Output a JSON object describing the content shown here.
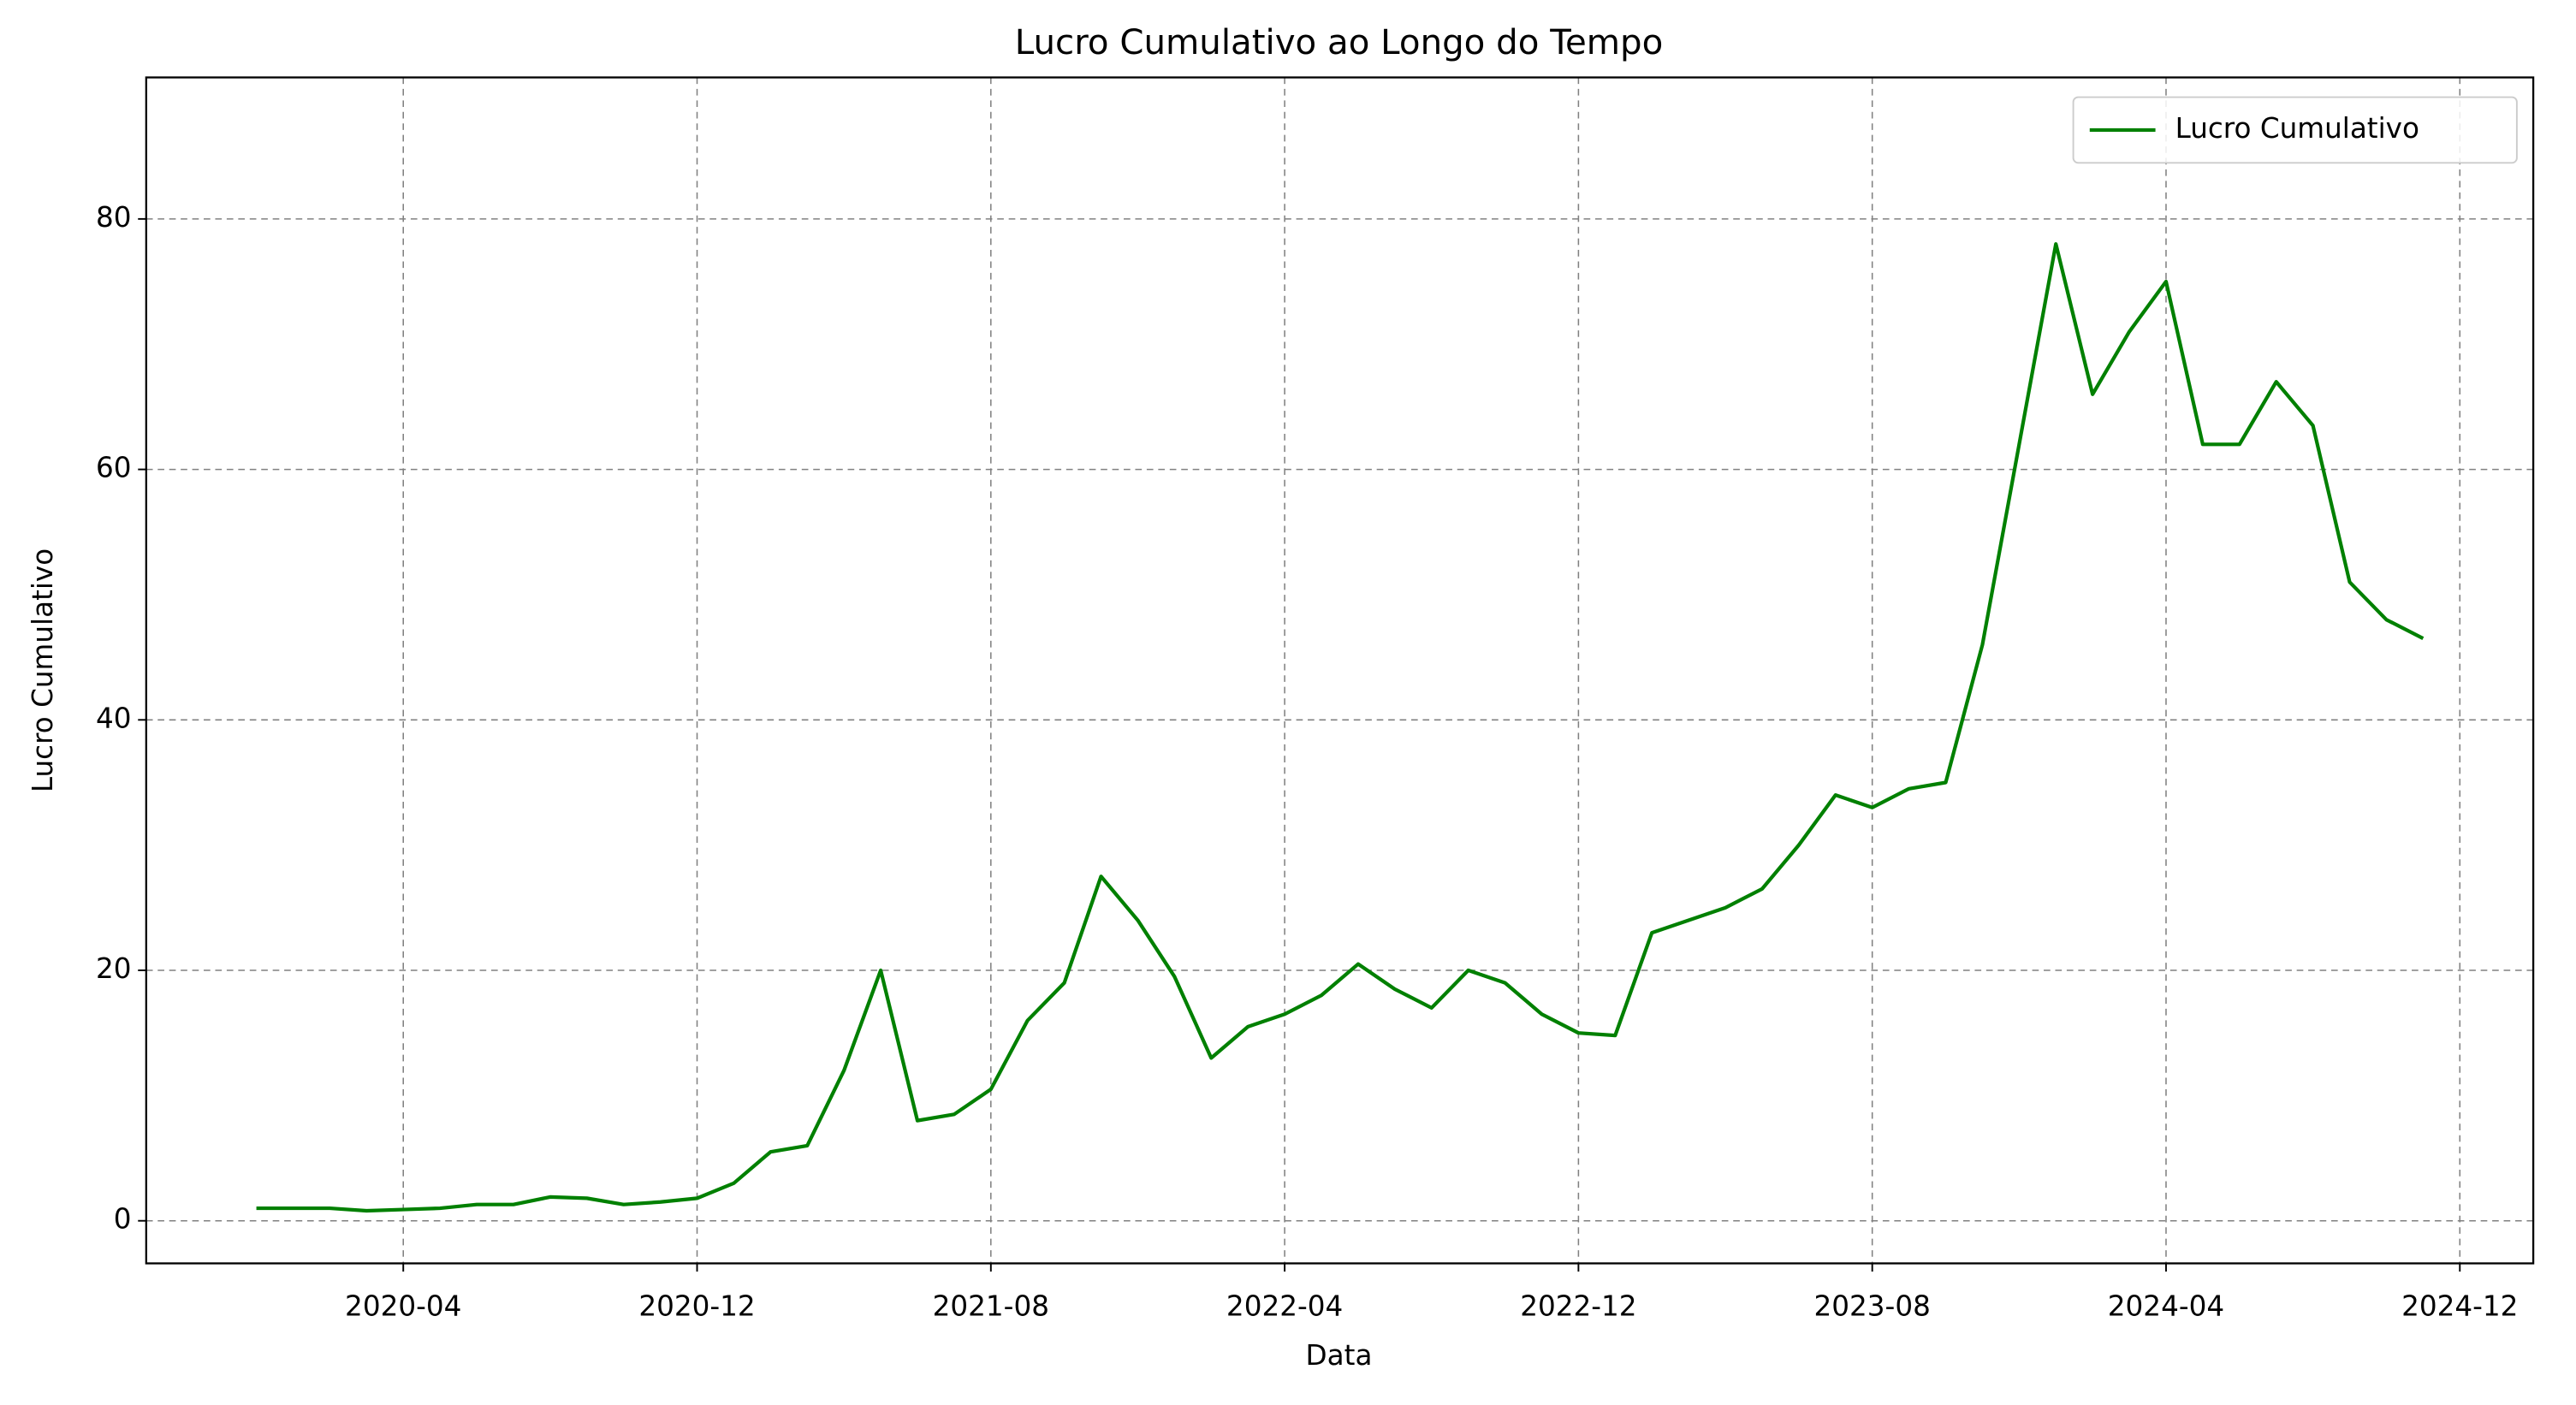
{
  "chart_data": {
    "type": "line",
    "title": "Lucro Cumulativo ao Longo do Tempo",
    "x_label": "Data",
    "y_label": "Lucro Cumulativo",
    "x": [
      "2019-12",
      "2020-01",
      "2020-02",
      "2020-03",
      "2020-04",
      "2020-05",
      "2020-06",
      "2020-07",
      "2020-08",
      "2020-09",
      "2020-10",
      "2020-11",
      "2020-12",
      "2021-01",
      "2021-02",
      "2021-03",
      "2021-04",
      "2021-05",
      "2021-06",
      "2021-07",
      "2021-08",
      "2021-09",
      "2021-10",
      "2021-11",
      "2021-12",
      "2022-01",
      "2022-02",
      "2022-03",
      "2022-04",
      "2022-05",
      "2022-06",
      "2022-07",
      "2022-08",
      "2022-09",
      "2022-10",
      "2022-11",
      "2022-12",
      "2023-01",
      "2023-02",
      "2023-03",
      "2023-04",
      "2023-05",
      "2023-06",
      "2023-07",
      "2023-08",
      "2023-09",
      "2023-10",
      "2023-11",
      "2023-12",
      "2024-01",
      "2024-02",
      "2024-03",
      "2024-04",
      "2024-05",
      "2024-06",
      "2024-07",
      "2024-08",
      "2024-09",
      "2024-10",
      "2024-11"
    ],
    "series": [
      {
        "name": "Lucro Cumulativo",
        "color": "#008000",
        "values": [
          1.0,
          1.0,
          1.0,
          0.8,
          0.9,
          1.0,
          1.3,
          1.3,
          1.9,
          1.8,
          1.3,
          1.5,
          1.8,
          3,
          5.5,
          6,
          12,
          20,
          8,
          8.5,
          10.5,
          16,
          19,
          27.5,
          24,
          19.5,
          13,
          15.5,
          16.5,
          18,
          20.5,
          18.5,
          17,
          20,
          19,
          16.5,
          15,
          14.8,
          23,
          24,
          25,
          26.5,
          30,
          34,
          33,
          34.5,
          35,
          46,
          62,
          78,
          66,
          71,
          75,
          62,
          62,
          67,
          63.5,
          51,
          48,
          46.5
        ]
      }
    ],
    "xlim": [
      "2019-09",
      "2025-02"
    ],
    "xticks": [
      "2020-04",
      "2020-12",
      "2021-08",
      "2022-04",
      "2022-12",
      "2023-08",
      "2024-04",
      "2024-12"
    ],
    "ylim": [
      -3.4,
      91.3
    ],
    "yticks": [
      0,
      20,
      40,
      60,
      80
    ],
    "grid": true,
    "legend": "upper right"
  }
}
